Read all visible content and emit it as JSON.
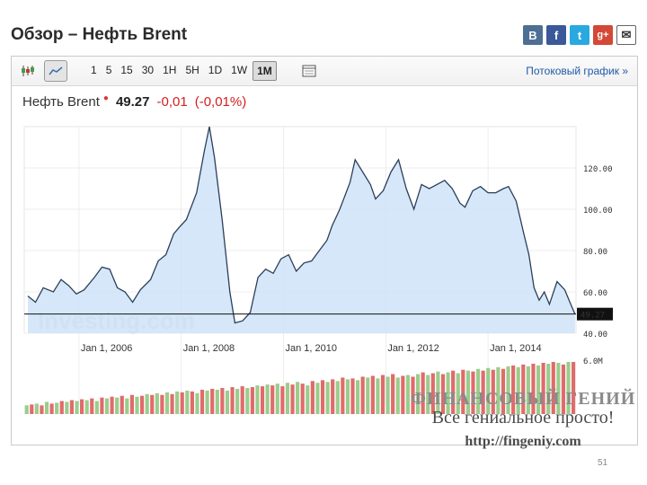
{
  "header": {
    "title": "Обзор – Нефть Brent"
  },
  "social": [
    {
      "name": "vk-icon",
      "glyph": "В",
      "color": "#4d6f94"
    },
    {
      "name": "facebook-icon",
      "glyph": "f",
      "color": "#3b5998"
    },
    {
      "name": "twitter-icon",
      "glyph": "t",
      "color": "#2aa9e0"
    },
    {
      "name": "googleplus-icon",
      "glyph": "g+",
      "color": "#d34836"
    },
    {
      "name": "email-icon",
      "glyph": "✉",
      "color": "#333333"
    }
  ],
  "toolbar": {
    "intervals": [
      "1",
      "5",
      "15",
      "30",
      "1H",
      "5H",
      "1D",
      "1W",
      "1M"
    ],
    "selected_interval": "1M",
    "stream_label": "Потоковый график »"
  },
  "quote": {
    "name": "Нефть Brent",
    "price": "49.27",
    "change": "-0,01",
    "change_pct": "(-0,01%)",
    "negative_color": "#d21f1f"
  },
  "chart_data": {
    "type": "area",
    "series": [
      {
        "values": [
          [
            2005.0,
            58
          ],
          [
            2005.15,
            55
          ],
          [
            2005.3,
            62
          ],
          [
            2005.5,
            60
          ],
          [
            2005.65,
            66
          ],
          [
            2005.8,
            63
          ],
          [
            2005.95,
            59
          ],
          [
            2006.1,
            61
          ],
          [
            2006.3,
            67
          ],
          [
            2006.45,
            72
          ],
          [
            2006.6,
            71
          ],
          [
            2006.75,
            62
          ],
          [
            2006.9,
            60
          ],
          [
            2007.05,
            55
          ],
          [
            2007.2,
            61
          ],
          [
            2007.4,
            66
          ],
          [
            2007.55,
            75
          ],
          [
            2007.7,
            78
          ],
          [
            2007.85,
            88
          ],
          [
            2007.95,
            91
          ],
          [
            2008.1,
            95
          ],
          [
            2008.3,
            108
          ],
          [
            2008.45,
            128
          ],
          [
            2008.55,
            140
          ],
          [
            2008.65,
            125
          ],
          [
            2008.8,
            95
          ],
          [
            2008.95,
            60
          ],
          [
            2009.05,
            45
          ],
          [
            2009.2,
            46
          ],
          [
            2009.35,
            50
          ],
          [
            2009.5,
            67
          ],
          [
            2009.65,
            71
          ],
          [
            2009.8,
            69
          ],
          [
            2009.95,
            76
          ],
          [
            2010.1,
            78
          ],
          [
            2010.25,
            70
          ],
          [
            2010.4,
            74
          ],
          [
            2010.55,
            75
          ],
          [
            2010.7,
            80
          ],
          [
            2010.85,
            85
          ],
          [
            2010.95,
            92
          ],
          [
            2011.1,
            100
          ],
          [
            2011.3,
            113
          ],
          [
            2011.4,
            124
          ],
          [
            2011.55,
            118
          ],
          [
            2011.7,
            112
          ],
          [
            2011.8,
            105
          ],
          [
            2011.95,
            109
          ],
          [
            2012.1,
            118
          ],
          [
            2012.25,
            124
          ],
          [
            2012.4,
            110
          ],
          [
            2012.55,
            100
          ],
          [
            2012.7,
            112
          ],
          [
            2012.85,
            110
          ],
          [
            2013.0,
            112
          ],
          [
            2013.15,
            114
          ],
          [
            2013.3,
            110
          ],
          [
            2013.45,
            103
          ],
          [
            2013.55,
            101
          ],
          [
            2013.7,
            109
          ],
          [
            2013.85,
            111
          ],
          [
            2014.0,
            108
          ],
          [
            2014.15,
            108
          ],
          [
            2014.3,
            110
          ],
          [
            2014.4,
            111
          ],
          [
            2014.55,
            104
          ],
          [
            2014.7,
            88
          ],
          [
            2014.8,
            78
          ],
          [
            2014.9,
            62
          ],
          [
            2015.0,
            56
          ],
          [
            2015.1,
            60
          ],
          [
            2015.2,
            54
          ],
          [
            2015.35,
            65
          ],
          [
            2015.5,
            61
          ],
          [
            2015.6,
            55
          ],
          [
            2015.7,
            49.27
          ]
        ]
      }
    ],
    "current_value": 49.27,
    "current_label": "49.27",
    "y_ticks": [
      "40.00",
      "60.00",
      "80.00",
      "100.00",
      "120.00"
    ],
    "y_tick_values": [
      40,
      60,
      80,
      100,
      120
    ],
    "ylim": [
      40,
      140
    ],
    "x_ticks": [
      "Jan 1, 2006",
      "Jan 1, 2008",
      "Jan 1, 2010",
      "Jan 1, 2012",
      "Jan 1, 2014"
    ],
    "x_tick_values": [
      2006,
      2008,
      2010,
      2012,
      2014
    ],
    "xlim": [
      2004.93,
      2015.72
    ],
    "volume_label": "6.0M",
    "volume_colors": {
      "up": "#9ccc8c",
      "down": "#e06b6b"
    },
    "volume": [
      [
        "u",
        1.0
      ],
      [
        "d",
        1.1
      ],
      [
        "u",
        1.2
      ],
      [
        "d",
        1.0
      ],
      [
        "u",
        1.4
      ],
      [
        "d",
        1.2
      ],
      [
        "u",
        1.3
      ],
      [
        "d",
        1.5
      ],
      [
        "u",
        1.4
      ],
      [
        "d",
        1.6
      ],
      [
        "u",
        1.5
      ],
      [
        "d",
        1.7
      ],
      [
        "u",
        1.6
      ],
      [
        "d",
        1.8
      ],
      [
        "u",
        1.5
      ],
      [
        "d",
        1.9
      ],
      [
        "u",
        1.8
      ],
      [
        "d",
        2.0
      ],
      [
        "u",
        1.9
      ],
      [
        "d",
        2.1
      ],
      [
        "u",
        1.8
      ],
      [
        "d",
        2.2
      ],
      [
        "u",
        2.0
      ],
      [
        "d",
        2.1
      ],
      [
        "u",
        2.3
      ],
      [
        "d",
        2.2
      ],
      [
        "u",
        2.4
      ],
      [
        "d",
        2.2
      ],
      [
        "u",
        2.5
      ],
      [
        "d",
        2.3
      ],
      [
        "u",
        2.6
      ],
      [
        "d",
        2.5
      ],
      [
        "u",
        2.7
      ],
      [
        "d",
        2.6
      ],
      [
        "u",
        2.4
      ],
      [
        "d",
        2.8
      ],
      [
        "u",
        2.7
      ],
      [
        "d",
        2.9
      ],
      [
        "u",
        2.8
      ],
      [
        "d",
        3.0
      ],
      [
        "u",
        2.7
      ],
      [
        "d",
        3.1
      ],
      [
        "u",
        2.9
      ],
      [
        "d",
        3.2
      ],
      [
        "u",
        3.0
      ],
      [
        "d",
        3.1
      ],
      [
        "u",
        3.3
      ],
      [
        "d",
        3.2
      ],
      [
        "u",
        3.4
      ],
      [
        "d",
        3.3
      ],
      [
        "u",
        3.5
      ],
      [
        "d",
        3.2
      ],
      [
        "u",
        3.6
      ],
      [
        "d",
        3.4
      ],
      [
        "u",
        3.7
      ],
      [
        "d",
        3.5
      ],
      [
        "u",
        3.3
      ],
      [
        "d",
        3.8
      ],
      [
        "u",
        3.6
      ],
      [
        "d",
        3.9
      ],
      [
        "u",
        3.7
      ],
      [
        "d",
        4.0
      ],
      [
        "u",
        3.8
      ],
      [
        "d",
        4.2
      ],
      [
        "u",
        4.0
      ],
      [
        "d",
        4.1
      ],
      [
        "u",
        3.9
      ],
      [
        "d",
        4.3
      ],
      [
        "u",
        4.2
      ],
      [
        "d",
        4.4
      ],
      [
        "u",
        4.1
      ],
      [
        "d",
        4.5
      ],
      [
        "u",
        4.3
      ],
      [
        "d",
        4.6
      ],
      [
        "u",
        4.2
      ],
      [
        "d",
        4.4
      ],
      [
        "u",
        4.5
      ],
      [
        "d",
        4.3
      ],
      [
        "u",
        4.6
      ],
      [
        "d",
        4.8
      ],
      [
        "u",
        4.5
      ],
      [
        "d",
        4.7
      ],
      [
        "u",
        4.9
      ],
      [
        "d",
        4.6
      ],
      [
        "u",
        4.8
      ],
      [
        "d",
        5.0
      ],
      [
        "u",
        4.7
      ],
      [
        "d",
        5.1
      ],
      [
        "u",
        5.0
      ],
      [
        "d",
        4.9
      ],
      [
        "u",
        5.2
      ],
      [
        "d",
        5.0
      ],
      [
        "u",
        5.3
      ],
      [
        "d",
        5.1
      ],
      [
        "u",
        5.4
      ],
      [
        "d",
        5.2
      ],
      [
        "u",
        5.5
      ],
      [
        "d",
        5.6
      ],
      [
        "u",
        5.4
      ],
      [
        "d",
        5.7
      ],
      [
        "u",
        5.5
      ],
      [
        "d",
        5.8
      ],
      [
        "u",
        5.6
      ],
      [
        "d",
        5.9
      ],
      [
        "u",
        5.8
      ],
      [
        "d",
        6.0
      ],
      [
        "u",
        5.9
      ],
      [
        "d",
        5.7
      ],
      [
        "u",
        6.0
      ],
      [
        "d",
        6.0
      ]
    ],
    "watermark": "Investing.com"
  },
  "overlay": {
    "line1": "ФИНАНСОВЫЙ ГЕНИЙ",
    "line2": "Все гениальное просто!",
    "line3": "http://fingeniy.com"
  },
  "page_number": "51"
}
